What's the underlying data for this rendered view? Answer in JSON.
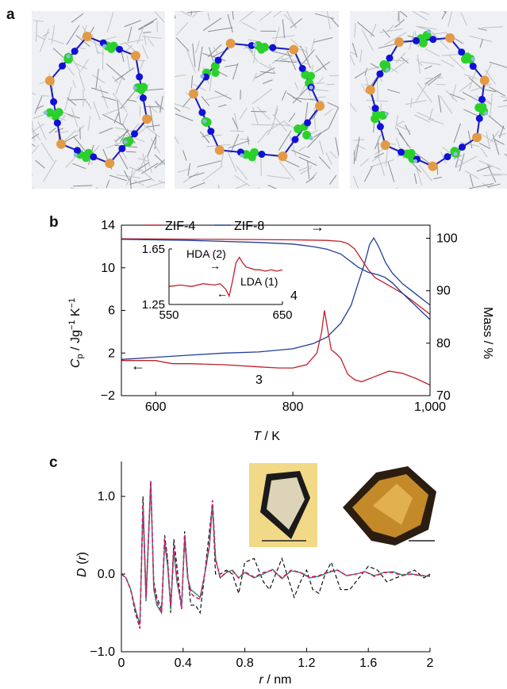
{
  "panels": {
    "a": "a",
    "b": "b",
    "c": "c"
  },
  "colors": {
    "zif4": "#c0202c",
    "zif8": "#1f3f9a",
    "dashed": "#111111",
    "green": "#2e8b57",
    "magenta": "#d4157a",
    "atom_c": "#2ad12a",
    "atom_n": "#1010d8",
    "atom_zn": "#e39a44",
    "atom_h": "#8fb8e0"
  },
  "panel_a": {
    "images": [
      {
        "name": "framework-view-1",
        "icon": "molecular-framework-icon"
      },
      {
        "name": "framework-view-2",
        "icon": "molecular-framework-icon"
      },
      {
        "name": "framework-view-3",
        "icon": "molecular-framework-icon"
      }
    ]
  },
  "chart_data": [
    {
      "type": "line",
      "panel": "b",
      "legend": [
        "ZIF-4",
        "ZIF-8"
      ],
      "xlabel": "T / K",
      "ylabel_left": "Cp / Jg⁻¹ K⁻¹",
      "ylabel_left_main": "C",
      "ylabel_left_sub": "p",
      "ylabel_left_rest": " / Jg",
      "ylabel_left_units2": " K",
      "ylabel_left_exp": "−1",
      "ylabel_right": "Mass / %",
      "xlim": [
        550,
        1000
      ],
      "ylim_left": [
        -2,
        14
      ],
      "ylim_right": [
        70,
        102.5
      ],
      "xticks": [
        600,
        800,
        1000
      ],
      "xtick_labels": [
        "600",
        "800",
        "1,000"
      ],
      "yticks_left": [
        -2,
        2,
        6,
        10,
        14
      ],
      "yticks_left_labels": [
        "−2",
        "2",
        "6",
        "10",
        "14"
      ],
      "yticks_right": [
        70,
        80,
        90,
        100
      ],
      "annotations": {
        "peak4": "4",
        "dip3": "3",
        "arrow_right": "→",
        "arrow_left": "←"
      },
      "series": [
        {
          "name": "ZIF-4",
          "role": "cp",
          "axis": "left",
          "x": [
            550,
            600,
            615,
            625,
            650,
            700,
            750,
            780,
            800,
            820,
            835,
            842,
            846,
            850,
            856,
            862,
            870,
            880,
            890,
            900,
            920,
            940,
            960,
            980,
            1000
          ],
          "y": [
            1.3,
            1.3,
            1.1,
            1.0,
            1.0,
            0.9,
            0.7,
            0.6,
            0.6,
            0.9,
            2.0,
            4.0,
            6.0,
            4.5,
            2.3,
            2.0,
            1.5,
            0.0,
            -0.5,
            -0.7,
            -0.2,
            0.3,
            0.1,
            -0.4,
            -1.0
          ]
        },
        {
          "name": "ZIF-8",
          "role": "cp",
          "axis": "left",
          "x": [
            550,
            600,
            650,
            700,
            750,
            800,
            830,
            850,
            870,
            885,
            895,
            905,
            912,
            918,
            925,
            935,
            945,
            960,
            980,
            1000
          ],
          "y": [
            1.4,
            1.6,
            1.8,
            2.0,
            2.1,
            2.4,
            2.9,
            3.5,
            4.8,
            6.5,
            8.5,
            10.5,
            12.2,
            12.8,
            12.0,
            10.5,
            9.5,
            8.5,
            7.5,
            6.5
          ]
        },
        {
          "name": "ZIF-4",
          "role": "mass",
          "axis": "right",
          "x": [
            550,
            700,
            800,
            850,
            870,
            880,
            890,
            900,
            910,
            920,
            940,
            960,
            980,
            1000
          ],
          "y": [
            99.9,
            99.8,
            99.7,
            99.6,
            99.4,
            99.0,
            98.0,
            96.0,
            94.0,
            92.5,
            91.0,
            89.5,
            87.5,
            85.5
          ]
        },
        {
          "name": "ZIF-8",
          "role": "mass",
          "axis": "right",
          "x": [
            550,
            650,
            750,
            800,
            830,
            850,
            870,
            880,
            895,
            910,
            925,
            935,
            945,
            960,
            980,
            1000
          ],
          "y": [
            99.8,
            99.6,
            99.2,
            98.9,
            98.4,
            97.9,
            97.0,
            96.0,
            94.5,
            93.5,
            93.0,
            92.5,
            91.5,
            89.5,
            87.0,
            84.5
          ]
        }
      ],
      "inset": {
        "xlim": [
          550,
          650
        ],
        "ylim": [
          1.25,
          1.65
        ],
        "xtick_labels": [
          "550",
          "650"
        ],
        "ytick_labels": [
          "1.25",
          "1.65"
        ],
        "labels": {
          "hda": "HDA (2)",
          "lda": "LDA (1)",
          "arrow_r": "→",
          "arrow_l": "←"
        },
        "series": {
          "name": "ZIF-4",
          "x": [
            550,
            560,
            570,
            580,
            590,
            595,
            600,
            603,
            606,
            609,
            612,
            615,
            618,
            622,
            626,
            630,
            635,
            640,
            645,
            650
          ],
          "y": [
            1.38,
            1.39,
            1.38,
            1.4,
            1.39,
            1.4,
            1.36,
            1.31,
            1.42,
            1.55,
            1.59,
            1.55,
            1.52,
            1.51,
            1.5,
            1.5,
            1.49,
            1.5,
            1.49,
            1.5
          ]
        }
      }
    },
    {
      "type": "line",
      "panel": "c",
      "xlabel": "r / nm",
      "ylabel": "D (r)",
      "xlim": [
        0,
        2
      ],
      "ylim": [
        -1.0,
        1.45
      ],
      "xticks": [
        0,
        0.4,
        0.8,
        1.2,
        1.6,
        2
      ],
      "xtick_labels": [
        "0",
        "0.4",
        "0.8",
        "1.2",
        "1.6",
        "2"
      ],
      "yticks": [
        -1.0,
        0.0,
        1.0
      ],
      "ytick_labels": [
        "−1.0",
        "0.0",
        "1.0"
      ],
      "images": [
        "crystal-photo-clear",
        "glass-photo-amber"
      ],
      "series": [
        {
          "style": "dashed",
          "x": [
            0,
            0.03,
            0.06,
            0.09,
            0.12,
            0.14,
            0.16,
            0.19,
            0.21,
            0.23,
            0.26,
            0.28,
            0.3,
            0.32,
            0.34,
            0.36,
            0.39,
            0.41,
            0.43,
            0.45,
            0.48,
            0.51,
            0.54,
            0.57,
            0.59,
            0.61,
            0.64,
            0.68,
            0.72,
            0.76,
            0.8,
            0.86,
            0.92,
            0.96,
            1.0,
            1.04,
            1.08,
            1.12,
            1.16,
            1.2,
            1.24,
            1.28,
            1.32,
            1.36,
            1.42,
            1.48,
            1.54,
            1.6,
            1.66,
            1.72,
            1.78,
            1.84,
            1.9,
            1.96,
            2.0
          ],
          "y": [
            0.0,
            -0.05,
            -0.2,
            -0.5,
            -0.7,
            1.0,
            -0.3,
            1.15,
            -0.1,
            -0.3,
            -0.45,
            0.5,
            0.2,
            -0.5,
            0.45,
            0.1,
            -0.45,
            0.55,
            0.0,
            -0.4,
            -0.4,
            -0.5,
            0.0,
            0.55,
            0.9,
            0.0,
            0.0,
            0.05,
            0.0,
            -0.25,
            0.15,
            0.2,
            -0.1,
            -0.2,
            0.0,
            0.2,
            -0.05,
            -0.3,
            -0.1,
            0.05,
            -0.2,
            -0.25,
            0.0,
            0.15,
            -0.2,
            -0.2,
            -0.05,
            0.1,
            0.05,
            -0.1,
            -0.05,
            0.0,
            0.05,
            -0.05,
            0.0
          ]
        },
        {
          "style": "solid",
          "color_key": "green",
          "x": [
            0,
            0.03,
            0.06,
            0.09,
            0.12,
            0.14,
            0.16,
            0.19,
            0.21,
            0.23,
            0.26,
            0.28,
            0.3,
            0.32,
            0.34,
            0.36,
            0.39,
            0.41,
            0.43,
            0.45,
            0.48,
            0.51,
            0.54,
            0.57,
            0.59,
            0.61,
            0.64,
            0.68,
            0.72,
            0.76,
            0.8,
            0.86,
            0.92,
            0.98,
            1.04,
            1.1,
            1.16,
            1.22,
            1.28,
            1.34,
            1.4,
            1.46,
            1.52,
            1.58,
            1.64,
            1.7,
            1.76,
            1.82,
            1.88,
            1.94,
            2.0
          ],
          "y": [
            0.0,
            -0.05,
            -0.2,
            -0.45,
            -0.65,
            0.85,
            -0.35,
            1.2,
            -0.2,
            -0.4,
            -0.5,
            0.4,
            0.1,
            -0.45,
            0.3,
            -0.1,
            -0.4,
            0.45,
            -0.05,
            -0.2,
            -0.25,
            -0.3,
            0.0,
            0.35,
            0.9,
            0.2,
            -0.05,
            0.02,
            0.05,
            -0.05,
            0.02,
            -0.05,
            0.0,
            0.06,
            -0.06,
            0.04,
            0.02,
            -0.05,
            -0.03,
            0.02,
            0.05,
            -0.02,
            0.0,
            0.03,
            -0.02,
            0.02,
            0.03,
            -0.01,
            0.0,
            -0.02,
            -0.03
          ]
        },
        {
          "style": "dashed",
          "color_key": "magenta",
          "x": [
            0,
            0.03,
            0.06,
            0.09,
            0.12,
            0.14,
            0.16,
            0.19,
            0.21,
            0.23,
            0.26,
            0.28,
            0.3,
            0.32,
            0.34,
            0.36,
            0.39,
            0.41,
            0.43,
            0.45,
            0.48,
            0.51,
            0.54,
            0.57,
            0.59,
            0.61,
            0.64,
            0.68,
            0.72,
            0.76,
            0.8,
            0.86,
            0.92,
            0.98,
            1.04,
            1.1,
            1.16,
            1.22,
            1.28,
            1.34,
            1.4,
            1.46,
            1.52,
            1.58,
            1.64,
            1.7,
            1.76,
            1.82,
            1.88,
            1.94,
            2.0
          ],
          "y": [
            0.0,
            -0.05,
            -0.2,
            -0.45,
            -0.7,
            0.9,
            -0.3,
            1.2,
            -0.15,
            -0.35,
            -0.5,
            0.45,
            0.15,
            -0.4,
            0.35,
            -0.05,
            -0.45,
            0.5,
            -0.05,
            -0.25,
            -0.3,
            -0.32,
            0.0,
            0.4,
            0.95,
            0.2,
            -0.05,
            0.03,
            0.04,
            -0.05,
            0.03,
            -0.04,
            0.02,
            0.05,
            -0.05,
            0.05,
            0.02,
            -0.04,
            -0.02,
            0.03,
            0.05,
            -0.02,
            0.0,
            0.03,
            -0.03,
            0.02,
            0.02,
            -0.02,
            0.0,
            -0.02,
            -0.02
          ]
        }
      ]
    }
  ]
}
